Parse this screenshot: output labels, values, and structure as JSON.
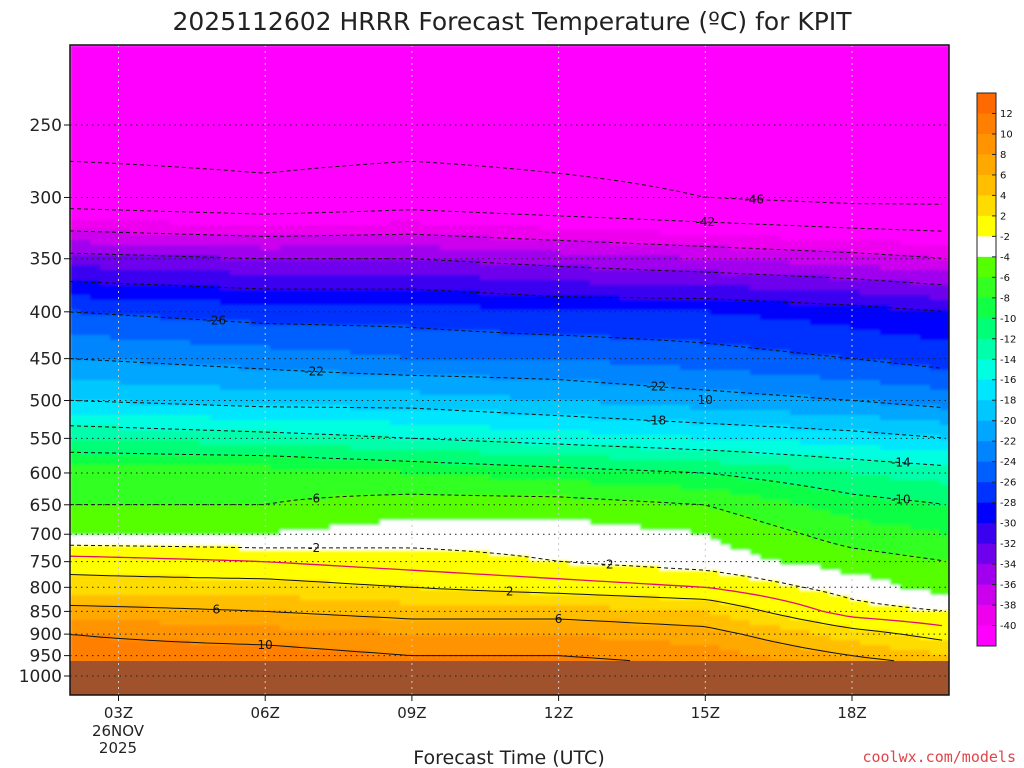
{
  "chart_data": {
    "type": "heatmap",
    "title": "2025112602 HRRR Forecast Temperature (ºC) for KPIT",
    "xlabel": "Forecast Time (UTC)",
    "ylabel": "",
    "x_ticks": [
      "03Z",
      "06Z",
      "09Z",
      "12Z",
      "15Z",
      "18Z"
    ],
    "x_date_line1": "26NOV",
    "x_date_line2": "2025",
    "y_ticks": [
      "250",
      "300",
      "350",
      "400",
      "450",
      "500",
      "550",
      "600",
      "650",
      "700",
      "750",
      "800",
      "850",
      "900",
      "950",
      "1000"
    ],
    "y_axis": "pressure (hPa), log scale, inverted",
    "ylim": [
      1050,
      200
    ],
    "x_hours": [
      2,
      3,
      4,
      5,
      6,
      7,
      8,
      9,
      10,
      11,
      12,
      13,
      14,
      15,
      16,
      17,
      18,
      19,
      20
    ],
    "pressure_levels": [
      1000,
      950,
      900,
      850,
      800,
      750,
      700,
      650,
      600,
      550,
      500,
      450,
      400,
      350,
      300,
      250,
      200
    ],
    "profiles": [
      {
        "hour": 2,
        "temps": [
          12,
          11,
          10,
          7,
          3,
          1,
          -4,
          -6,
          -7,
          -12,
          -18,
          -22,
          -26,
          -33,
          -44,
          -48,
          -50
        ]
      },
      {
        "hour": 6,
        "temps": [
          12,
          11,
          9,
          6,
          3,
          0,
          -4,
          -6,
          -7,
          -13,
          -19,
          -23,
          -27,
          -34,
          -45,
          -48,
          -50
        ]
      },
      {
        "hour": 9,
        "temps": [
          12,
          10,
          8,
          5,
          2,
          -1,
          -3,
          -5,
          -8,
          -14,
          -19,
          -24,
          -27,
          -34,
          -44,
          -48,
          -50
        ]
      },
      {
        "hour": 12,
        "temps": [
          12,
          10,
          8,
          5,
          1,
          -2,
          -3,
          -5,
          -9,
          -15,
          -20,
          -24,
          -28,
          -35,
          -45,
          -48,
          -50
        ]
      },
      {
        "hour": 15,
        "temps": [
          11,
          9,
          7,
          4,
          0,
          -3,
          -4,
          -6,
          -10,
          -16,
          -21,
          -25,
          -28,
          -36,
          -46,
          -48,
          -50
        ]
      },
      {
        "hour": 18,
        "temps": [
          9,
          6,
          3,
          -1,
          -3,
          -5,
          -7,
          -9,
          -12,
          -17,
          -22,
          -26,
          -29,
          -37,
          -47,
          -48,
          -50
        ]
      },
      {
        "hour": 20,
        "temps": [
          8,
          4,
          1,
          -2,
          -5,
          -6,
          -8,
          -10,
          -13,
          -18,
          -23,
          -27,
          -30,
          -38,
          -47,
          -48,
          -50
        ]
      }
    ],
    "contour_labels": [
      "-46",
      "-42",
      "-26",
      "-22",
      "-22",
      "-18",
      "-14",
      "-10",
      "-6",
      "-2",
      "-2",
      "2",
      "6",
      "6",
      "10",
      "10"
    ],
    "colorbar": {
      "labels": [
        "12",
        "10",
        "8",
        "6",
        "4",
        "2",
        "-2",
        "-4",
        "-6",
        "-8",
        "-10",
        "-12",
        "-14",
        "-16",
        "-18",
        "-20",
        "-22",
        "-24",
        "-26",
        "-28",
        "-30",
        "-32",
        "-34",
        "-36",
        "-38",
        "-40"
      ],
      "colors": [
        "#ff6a00",
        "#ff7f00",
        "#ff9400",
        "#ffa900",
        "#ffbf00",
        "#ffdc00",
        "#ffff00",
        "#ffffff",
        "#55ff00",
        "#33ff22",
        "#11ff44",
        "#00ff77",
        "#00ffaa",
        "#00ffe0",
        "#00e6ff",
        "#00c8ff",
        "#00a6ff",
        "#0085ff",
        "#005fff",
        "#0033ff",
        "#0000ff",
        "#3a00f0",
        "#6e00ee",
        "#a000ee",
        "#cc00ee",
        "#ee00ee",
        "#ff00ff"
      ]
    },
    "ground_color": "#a0522d",
    "grid": true,
    "legend": "right colorbar"
  },
  "credit": "coolwx.com/models"
}
